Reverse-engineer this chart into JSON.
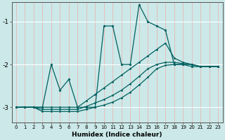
{
  "xlabel": "Humidex (Indice chaleur)",
  "bg_color": "#cce8e8",
  "line_color": "#006060",
  "grid_color_v": "#e8b8b8",
  "grid_color_h": "#ffffff",
  "xlim": [
    -0.5,
    23.5
  ],
  "ylim": [
    -3.35,
    -0.55
  ],
  "yticks": [
    -3,
    -2,
    -1
  ],
  "xticks": [
    0,
    1,
    2,
    3,
    4,
    5,
    6,
    7,
    8,
    9,
    10,
    11,
    12,
    13,
    14,
    15,
    16,
    17,
    18,
    19,
    20,
    21,
    22,
    23
  ],
  "line1_x": [
    0,
    1,
    2,
    3,
    4,
    5,
    6,
    7,
    8,
    9,
    10,
    11,
    12,
    13,
    14,
    15,
    16,
    17,
    18,
    19,
    20,
    21,
    22,
    23
  ],
  "line1_y": [
    -3.0,
    -3.0,
    -3.0,
    -3.0,
    -2.0,
    -2.6,
    -2.35,
    -3.0,
    -3.0,
    -3.0,
    -1.1,
    -1.1,
    -2.0,
    -2.0,
    -0.6,
    -1.0,
    -1.1,
    -1.2,
    -2.0,
    -2.0,
    -2.05,
    -2.05,
    -2.05,
    -2.05
  ],
  "line2_x": [
    0,
    1,
    2,
    3,
    4,
    5,
    6,
    7,
    8,
    9,
    10,
    11,
    12,
    13,
    14,
    15,
    16,
    17,
    18,
    19,
    20,
    21,
    22,
    23
  ],
  "line2_y": [
    -3.0,
    -3.0,
    -3.0,
    -3.0,
    -3.0,
    -3.0,
    -3.0,
    -3.0,
    -2.85,
    -2.7,
    -2.55,
    -2.4,
    -2.25,
    -2.1,
    -1.95,
    -1.8,
    -1.65,
    -1.5,
    -1.85,
    -1.95,
    -2.0,
    -2.05,
    -2.05,
    -2.05
  ],
  "line3_x": [
    0,
    1,
    2,
    3,
    4,
    5,
    6,
    7,
    8,
    9,
    10,
    11,
    12,
    13,
    14,
    15,
    16,
    17,
    18,
    19,
    20,
    21,
    22,
    23
  ],
  "line3_y": [
    -3.0,
    -3.0,
    -3.0,
    -3.05,
    -3.05,
    -3.05,
    -3.05,
    -3.05,
    -2.98,
    -2.9,
    -2.82,
    -2.72,
    -2.6,
    -2.45,
    -2.28,
    -2.1,
    -2.0,
    -1.95,
    -1.95,
    -1.98,
    -2.0,
    -2.05,
    -2.05,
    -2.05
  ],
  "line4_x": [
    0,
    1,
    2,
    3,
    4,
    5,
    6,
    7,
    8,
    9,
    10,
    11,
    12,
    13,
    14,
    15,
    16,
    17,
    18,
    19,
    20,
    21,
    22,
    23
  ],
  "line4_y": [
    -3.0,
    -3.0,
    -3.0,
    -3.1,
    -3.1,
    -3.1,
    -3.1,
    -3.1,
    -3.05,
    -3.0,
    -2.95,
    -2.88,
    -2.78,
    -2.65,
    -2.48,
    -2.3,
    -2.1,
    -2.02,
    -2.0,
    -2.0,
    -2.0,
    -2.05,
    -2.05,
    -2.05
  ]
}
